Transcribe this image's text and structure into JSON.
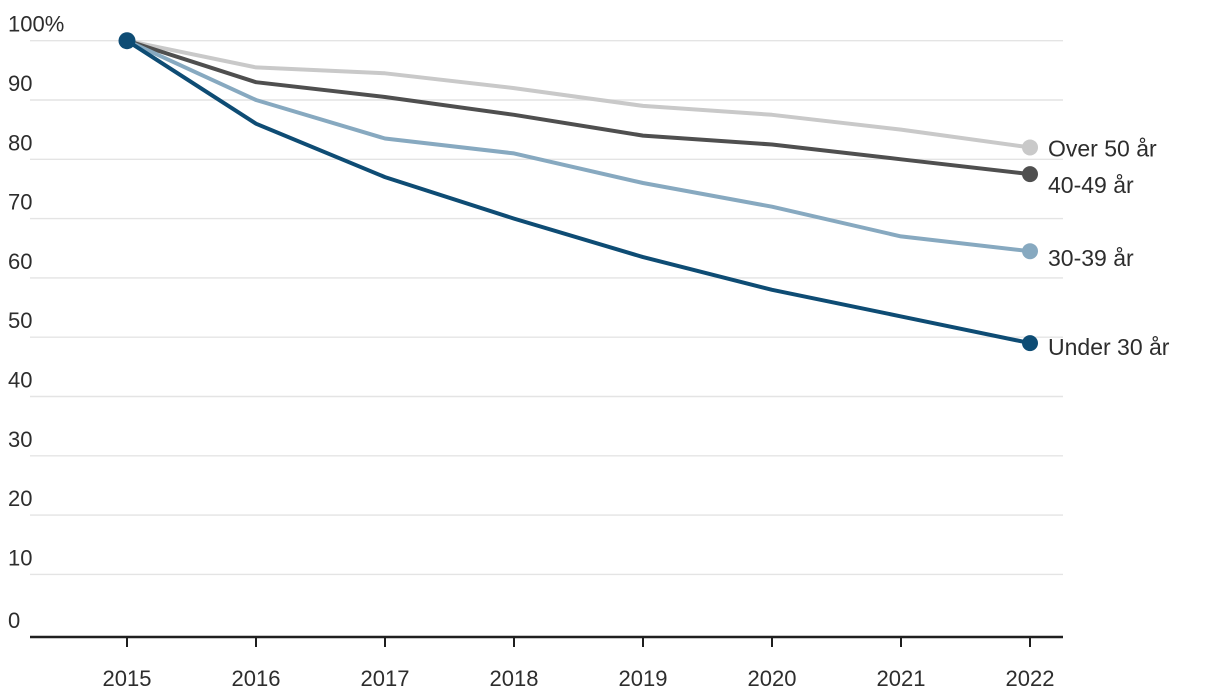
{
  "chart_data": {
    "type": "line",
    "x": [
      2015,
      2016,
      2017,
      2018,
      2019,
      2020,
      2021,
      2022
    ],
    "series": [
      {
        "id": "over-50-ar",
        "name": "Over 50 år",
        "color": "#c9c9c9",
        "values": [
          100,
          95.5,
          94.5,
          92,
          89,
          87.5,
          85,
          82
        ]
      },
      {
        "id": "40-49-ar",
        "name": "40-49 år",
        "color": "#4f4f4f",
        "values": [
          100,
          93,
          90.5,
          87.5,
          84,
          82.5,
          80,
          77.5
        ]
      },
      {
        "id": "30-39-ar",
        "name": "30-39 år",
        "color": "#87a9c0",
        "values": [
          100,
          90,
          83.5,
          81,
          76,
          72,
          67,
          64.5
        ]
      },
      {
        "id": "under-30-ar",
        "name": "Under 30 år",
        "color": "#0e4c74",
        "values": [
          100,
          86,
          77,
          70,
          63.5,
          58,
          53.5,
          49
        ]
      }
    ],
    "y_ticks": [
      {
        "value": 0,
        "label": "0"
      },
      {
        "value": 10,
        "label": "10"
      },
      {
        "value": 20,
        "label": "20"
      },
      {
        "value": 30,
        "label": "30"
      },
      {
        "value": 40,
        "label": "40"
      },
      {
        "value": 50,
        "label": "50"
      },
      {
        "value": 60,
        "label": "60"
      },
      {
        "value": 70,
        "label": "70"
      },
      {
        "value": 80,
        "label": "80"
      },
      {
        "value": 90,
        "label": "90"
      },
      {
        "value": 100,
        "label": "100%"
      }
    ],
    "x_tick_labels": [
      "2015",
      "2016",
      "2017",
      "2018",
      "2019",
      "2020",
      "2021",
      "2022"
    ],
    "title": "",
    "xlabel": "",
    "ylabel": "",
    "ylim": [
      0,
      100
    ],
    "grid": true,
    "legend_position": "right-end-labels",
    "start_marker": {
      "x": 2015,
      "value": 100,
      "color": "#0e4c74"
    },
    "colors": {
      "gridline": "#e4e4e4",
      "axis": "#1f1f1f",
      "text": "#2d2d2d",
      "background": "#ffffff"
    }
  }
}
